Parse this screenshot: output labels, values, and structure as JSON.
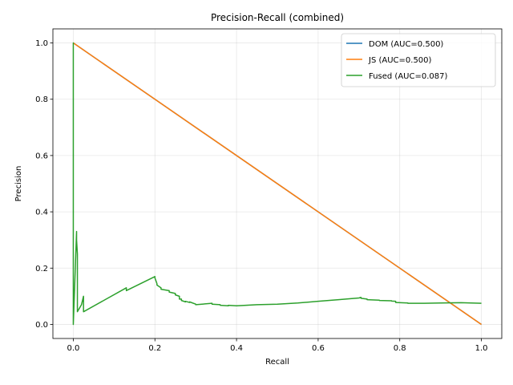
{
  "chart_data": {
    "type": "line",
    "title": "Precision-Recall (combined)",
    "xlabel": "Recall",
    "ylabel": "Precision",
    "xlim": [
      -0.05,
      1.05
    ],
    "ylim": [
      -0.05,
      1.05
    ],
    "xticks": [
      0.0,
      0.2,
      0.4,
      0.6,
      0.8,
      1.0
    ],
    "yticks": [
      0.0,
      0.2,
      0.4,
      0.6,
      0.8,
      1.0
    ],
    "xtick_labels": [
      "0.0",
      "0.2",
      "0.4",
      "0.6",
      "0.8",
      "1.0"
    ],
    "ytick_labels": [
      "0.0",
      "0.2",
      "0.4",
      "0.6",
      "0.8",
      "1.0"
    ],
    "grid": true,
    "legend_position": "top-right",
    "series": [
      {
        "name": "DOM (AUC=0.500)",
        "color": "#1f77b4",
        "x": [
          0.0,
          1.0
        ],
        "y": [
          1.0,
          0.0
        ]
      },
      {
        "name": "JS (AUC=0.500)",
        "color": "#ff7f0e",
        "x": [
          0.0,
          1.0
        ],
        "y": [
          1.0,
          0.0
        ]
      },
      {
        "name": "Fused (AUC=0.087)",
        "color": "#2ca02c",
        "x": [
          0.0,
          0.0,
          0.0,
          0.008,
          0.008,
          0.01,
          0.01,
          0.02,
          0.025,
          0.025,
          0.13,
          0.13,
          0.2,
          0.2,
          0.205,
          0.205,
          0.215,
          0.215,
          0.235,
          0.235,
          0.25,
          0.25,
          0.26,
          0.26,
          0.265,
          0.265,
          0.275,
          0.275,
          0.285,
          0.285,
          0.3,
          0.3,
          0.34,
          0.34,
          0.36,
          0.36,
          0.38,
          0.38,
          0.4,
          0.45,
          0.5,
          0.55,
          0.6,
          0.65,
          0.7,
          0.705,
          0.705,
          0.72,
          0.72,
          0.75,
          0.75,
          0.78,
          0.78,
          0.79,
          0.79,
          0.82,
          0.82,
          0.86,
          0.9,
          0.95,
          1.0
        ],
        "y": [
          0.0,
          1.0,
          0.0,
          0.33,
          0.3,
          0.25,
          0.045,
          0.07,
          0.1,
          0.045,
          0.13,
          0.12,
          0.17,
          0.165,
          0.145,
          0.14,
          0.13,
          0.125,
          0.12,
          0.115,
          0.11,
          0.105,
          0.1,
          0.09,
          0.09,
          0.085,
          0.08,
          0.082,
          0.078,
          0.08,
          0.072,
          0.07,
          0.075,
          0.072,
          0.07,
          0.068,
          0.066,
          0.068,
          0.066,
          0.07,
          0.072,
          0.076,
          0.082,
          0.088,
          0.094,
          0.096,
          0.093,
          0.09,
          0.088,
          0.086,
          0.085,
          0.084,
          0.083,
          0.082,
          0.078,
          0.076,
          0.075,
          0.075,
          0.076,
          0.077,
          0.075
        ]
      }
    ]
  }
}
